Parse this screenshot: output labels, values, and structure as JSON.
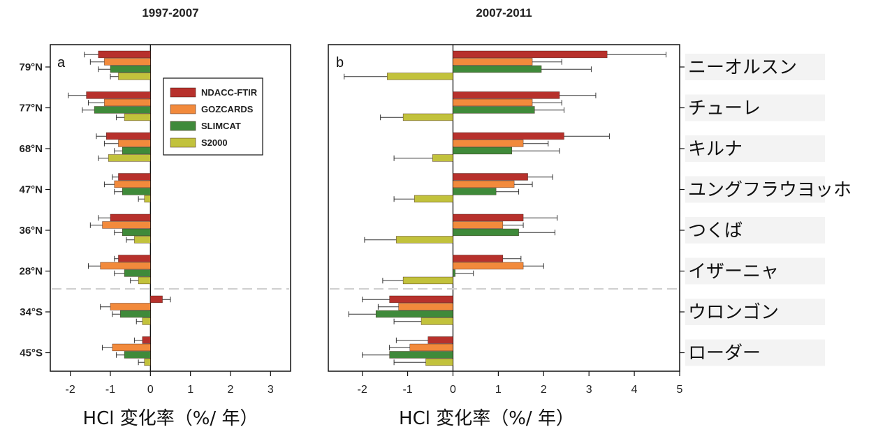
{
  "chart_data": [
    {
      "type": "bar",
      "panel_label": "a",
      "title": "1997-2007",
      "xlabel": "HCl 変化率（%/ 年）",
      "xlim": [
        -2.5,
        3.5
      ],
      "xticks": [
        -2,
        -1,
        0,
        1,
        2,
        3
      ],
      "categories": [
        "79°N",
        "77°N",
        "68°N",
        "47°N",
        "36°N",
        "28°N",
        "34°S",
        "45°S"
      ],
      "series": [
        {
          "name": "NDACC-FTIR",
          "color": "#b7312c",
          "values": [
            -1.3,
            -1.6,
            -1.1,
            -0.8,
            -1.0,
            -0.8,
            0.3,
            -0.2
          ],
          "errors": [
            0.35,
            0.45,
            0.25,
            0.15,
            0.3,
            0.1,
            0.2,
            0.2
          ]
        },
        {
          "name": "GOZCARDS",
          "color": "#f28a3c",
          "values": [
            -1.15,
            -1.15,
            -0.8,
            -0.9,
            -1.2,
            -1.25,
            -1.0,
            -0.95
          ],
          "errors": [
            0.35,
            0.4,
            0.35,
            0.25,
            0.3,
            0.3,
            0.25,
            0.25
          ]
        },
        {
          "name": "SLIMCAT",
          "color": "#3f8a3a",
          "values": [
            -1.0,
            -1.4,
            -0.7,
            -0.7,
            -0.7,
            -0.65,
            -0.75,
            -0.65
          ],
          "errors": [
            0.3,
            0.3,
            0.2,
            0.2,
            0.2,
            0.25,
            0.2,
            0.2
          ]
        },
        {
          "name": "S2000",
          "color": "#c2c23c",
          "values": [
            -0.8,
            -0.65,
            -1.05,
            -0.15,
            -0.4,
            -0.3,
            -0.2,
            -0.15
          ],
          "errors": [
            0.2,
            0.2,
            0.25,
            0.15,
            0.2,
            0.2,
            0.15,
            0.15
          ]
        }
      ],
      "legend": {
        "position": "top-right"
      }
    },
    {
      "type": "bar",
      "panel_label": "b",
      "title": "2007-2011",
      "xlabel": "HCl 変化率（%/ 年）",
      "xlim": [
        -2.75,
        5
      ],
      "xticks": [
        -2,
        -1,
        0,
        1,
        2,
        3,
        4,
        5
      ],
      "categories": [
        "ニーオルスン",
        "チューレ",
        "キルナ",
        "ユングフラウヨッホ",
        "つくば",
        "イザーニャ",
        "ウロンゴン",
        "ローダー"
      ],
      "series": [
        {
          "name": "NDACC-FTIR",
          "color": "#b7312c",
          "values": [
            3.4,
            2.35,
            2.45,
            1.65,
            1.55,
            1.1,
            -1.4,
            -0.55
          ],
          "errors": [
            1.3,
            0.8,
            1.0,
            0.55,
            0.75,
            0.4,
            0.6,
            0.7
          ]
        },
        {
          "name": "GOZCARDS",
          "color": "#f28a3c",
          "values": [
            1.75,
            1.75,
            1.55,
            1.35,
            1.1,
            1.55,
            -1.2,
            -0.95
          ],
          "errors": [
            0.65,
            0.65,
            0.55,
            0.4,
            0.45,
            0.45,
            0.45,
            0.45
          ]
        },
        {
          "name": "SLIMCAT",
          "color": "#3f8a3a",
          "values": [
            1.95,
            1.8,
            1.3,
            0.95,
            1.45,
            0.05,
            -1.7,
            -1.4
          ],
          "errors": [
            1.1,
            0.65,
            1.05,
            0.5,
            0.8,
            0.4,
            0.6,
            0.6
          ]
        },
        {
          "name": "S2000",
          "color": "#c2c23c",
          "values": [
            -1.45,
            -1.1,
            -0.45,
            -0.85,
            -1.25,
            -1.1,
            -0.7,
            -0.6
          ],
          "errors": [
            0.95,
            0.5,
            0.85,
            0.45,
            0.7,
            0.45,
            0.6,
            0.7
          ]
        }
      ]
    }
  ]
}
